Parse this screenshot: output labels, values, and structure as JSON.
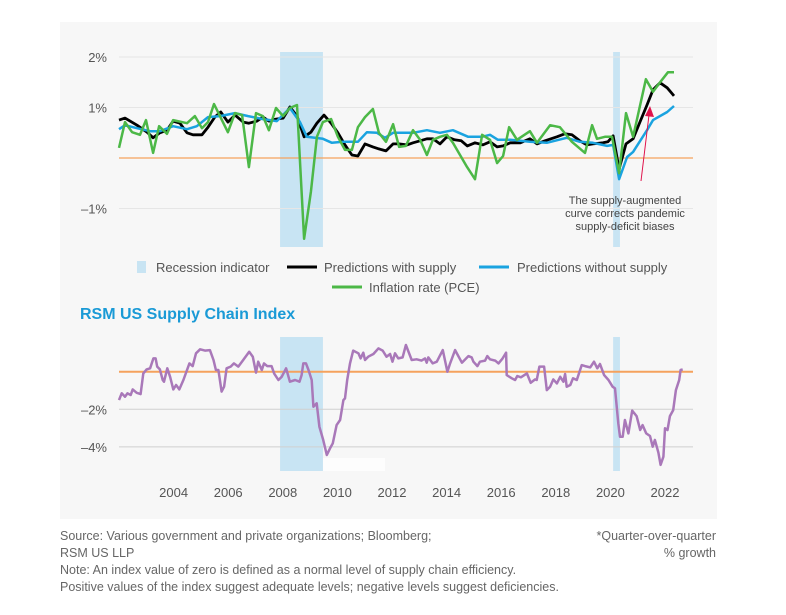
{
  "colors": {
    "recession": "#c8e4f3",
    "with_supply": "#000000",
    "without_supply": "#1aa3e0",
    "inflation": "#4cb847",
    "zero_line": "#f5a25d",
    "index": "#a978b9",
    "annotation_arrow": "#e0144c",
    "title": "#1a9ad6"
  },
  "chart_data": [
    {
      "type": "line",
      "ylim": [
        -1.76,
        2.1
      ],
      "xlim": [
        2002,
        2023
      ],
      "grid": true,
      "ytick_labels": [
        {
          "value": 2,
          "label": "2%"
        },
        {
          "value": 1,
          "label": "1%"
        },
        {
          "value": -1,
          "label": "–1%"
        }
      ],
      "reference_line": 0,
      "recessions": [
        [
          2007.9,
          2009.47
        ],
        [
          2020.1,
          2020.35
        ]
      ],
      "legend_placement": "bottom",
      "legend": {
        "recession": "Recession indicator",
        "with_supply": "Predictions with supply",
        "without_supply": "Predictions without supply",
        "inflation": "Inflation rate (PCE)"
      },
      "annotation": {
        "lines": [
          "The supply-augmented",
          "curve corrects pandemic",
          "supply-deficit biases"
        ],
        "points_to": [
          2021.3,
          0.99
        ]
      },
      "series": [
        {
          "name": "Predictions with supply",
          "key": "with_supply",
          "x": [
            2002.0,
            2002.22,
            2002.66,
            2003.03,
            2003.25,
            2003.5,
            2003.76,
            2003.98,
            2004.23,
            2004.49,
            2004.71,
            2005.04,
            2005.26,
            2005.51,
            2005.73,
            2005.99,
            2006.25,
            2006.55,
            2006.76,
            2007.05,
            2007.27,
            2007.49,
            2007.75,
            2008.01,
            2008.26,
            2008.52,
            2008.78,
            2009.03,
            2009.25,
            2009.51,
            2009.77,
            2010.02,
            2010.28,
            2010.53,
            2010.75,
            2011.01,
            2011.3,
            2011.52,
            2011.78,
            2012.04,
            2012.26,
            2012.55,
            2012.77,
            2013.03,
            2013.28,
            2013.5,
            2013.76,
            2014.01,
            2014.29,
            2014.54,
            2014.76,
            2015.04,
            2015.33,
            2015.59,
            2015.85,
            2016.07,
            2016.33,
            2016.7,
            2017.05,
            2017.31,
            2017.6,
            2018.04,
            2018.33,
            2018.59,
            2018.88,
            2019.14,
            2019.36,
            2019.73,
            2019.91,
            2020.1,
            2020.32,
            2020.57,
            2020.83,
            2021.08,
            2021.34,
            2021.56,
            2021.82,
            2022.08,
            2022.33
          ],
          "y": [
            0.75,
            0.79,
            0.65,
            0.51,
            0.4,
            0.5,
            0.55,
            0.73,
            0.69,
            0.5,
            0.46,
            0.46,
            0.61,
            0.81,
            0.91,
            0.71,
            0.85,
            0.71,
            0.69,
            0.73,
            0.81,
            0.73,
            0.77,
            0.79,
            1.01,
            0.83,
            0.42,
            0.51,
            0.69,
            0.85,
            0.69,
            0.5,
            0.26,
            0.06,
            0.04,
            0.28,
            0.22,
            0.18,
            0.14,
            0.28,
            0.28,
            0.26,
            0.3,
            0.34,
            0.38,
            0.38,
            0.28,
            0.42,
            0.36,
            0.34,
            0.24,
            0.3,
            0.26,
            0.32,
            0.22,
            0.24,
            0.3,
            0.3,
            0.38,
            0.28,
            0.34,
            0.42,
            0.48,
            0.46,
            0.34,
            0.26,
            0.28,
            0.3,
            0.32,
            0.44,
            -0.22,
            0.28,
            0.38,
            0.71,
            1.05,
            1.35,
            1.49,
            1.39,
            1.23
          ]
        },
        {
          "name": "Predictions without supply",
          "key": "without_supply",
          "x": [
            2002.0,
            2002.22,
            2002.66,
            2003.14,
            2003.5,
            2003.98,
            2004.49,
            2004.85,
            2005.26,
            2005.7,
            2006.25,
            2006.73,
            2007.27,
            2007.78,
            2008.26,
            2008.63,
            2008.88,
            2009.47,
            2009.8,
            2010.2,
            2010.75,
            2011.08,
            2011.45,
            2011.74,
            2012.04,
            2012.77,
            2013.28,
            2013.76,
            2014.23,
            2014.79,
            2015.3,
            2015.59,
            2015.88,
            2016.33,
            2017.05,
            2017.67,
            2018.4,
            2018.88,
            2019.36,
            2019.88,
            2020.1,
            2020.32,
            2020.61,
            2020.83,
            2021.34,
            2021.56,
            2022.08,
            2022.33
          ],
          "y": [
            0.57,
            0.65,
            0.59,
            0.53,
            0.53,
            0.63,
            0.57,
            0.63,
            0.81,
            0.83,
            0.89,
            0.83,
            0.77,
            0.73,
            0.99,
            0.71,
            0.42,
            0.38,
            0.3,
            0.32,
            0.32,
            0.51,
            0.5,
            0.4,
            0.5,
            0.5,
            0.55,
            0.5,
            0.55,
            0.42,
            0.42,
            0.46,
            0.36,
            0.36,
            0.32,
            0.3,
            0.4,
            0.32,
            0.3,
            0.24,
            0.26,
            -0.42,
            0.02,
            0.12,
            0.55,
            0.75,
            0.91,
            1.03
          ]
        },
        {
          "name": "Inflation rate (PCE)",
          "key": "inflation",
          "x": [
            2002.0,
            2002.22,
            2002.48,
            2002.77,
            2002.99,
            2003.25,
            2003.47,
            2003.76,
            2003.98,
            2004.49,
            2004.78,
            2005.04,
            2005.26,
            2005.48,
            2005.77,
            2005.99,
            2006.25,
            2006.51,
            2006.76,
            2007.02,
            2007.27,
            2007.49,
            2007.75,
            2008.01,
            2008.26,
            2008.52,
            2008.78,
            2009.03,
            2009.25,
            2009.47,
            2009.77,
            2010.02,
            2010.28,
            2010.53,
            2010.75,
            2011.01,
            2011.3,
            2011.52,
            2011.78,
            2012.04,
            2012.26,
            2012.51,
            2012.77,
            2013.03,
            2013.28,
            2013.5,
            2013.76,
            2014.01,
            2014.23,
            2014.75,
            2015.04,
            2015.3,
            2015.59,
            2015.85,
            2016.07,
            2016.29,
            2016.58,
            2017.05,
            2017.31,
            2017.79,
            2018.15,
            2018.59,
            2019.07,
            2019.33,
            2019.51,
            2019.8,
            2020.06,
            2020.32,
            2020.57,
            2020.83,
            2021.3,
            2021.56,
            2021.82,
            2022.11,
            2022.33
          ],
          "y": [
            0.2,
            0.71,
            0.51,
            0.46,
            0.75,
            0.1,
            0.63,
            0.48,
            0.75,
            0.69,
            0.83,
            0.59,
            0.71,
            1.07,
            0.75,
            0.51,
            0.89,
            0.85,
            -0.18,
            0.89,
            0.83,
            0.55,
            0.99,
            0.83,
            0.99,
            1.05,
            -1.6,
            -0.67,
            0.42,
            0.71,
            0.77,
            0.42,
            0.16,
            0.16,
            0.61,
            0.81,
            0.97,
            0.5,
            0.32,
            0.67,
            0.22,
            0.24,
            0.55,
            0.36,
            0.06,
            0.36,
            0.42,
            0.46,
            0.3,
            -0.18,
            -0.42,
            0.46,
            0.36,
            -0.1,
            0.04,
            0.61,
            0.36,
            0.53,
            0.3,
            0.65,
            0.61,
            0.32,
            0.1,
            0.65,
            0.38,
            0.42,
            0.42,
            -0.3,
            0.89,
            0.42,
            1.56,
            1.31,
            1.5,
            1.7,
            1.7
          ]
        }
      ]
    },
    {
      "type": "line",
      "title": "RSM US Supply Chain Index",
      "ylim": [
        -5.28,
        1.85
      ],
      "xlim": [
        2002,
        2023
      ],
      "grid": true,
      "ytick_labels": [
        {
          "value": -2,
          "label": "–2%"
        },
        {
          "value": -4,
          "label": "–4%"
        }
      ],
      "reference_line": 0,
      "recessions": [
        [
          2007.9,
          2009.47
        ],
        [
          2020.1,
          2020.35
        ]
      ],
      "xtick_labels": [
        "2004",
        "2006",
        "2008",
        "2010",
        "2012",
        "2014",
        "2016",
        "2018",
        "2020",
        "2022"
      ],
      "series": [
        {
          "key": "index",
          "x": [
            2002.0,
            2002.1,
            2002.22,
            2002.31,
            2002.43,
            2002.5,
            2002.65,
            2002.79,
            2002.89,
            2003.01,
            2003.14,
            2003.26,
            2003.34,
            2003.4,
            2003.5,
            2003.6,
            2003.65,
            2003.77,
            2003.87,
            2003.99,
            2004.09,
            2004.21,
            2004.36,
            2004.58,
            2004.7,
            2004.82,
            2004.97,
            2005.15,
            2005.33,
            2005.46,
            2005.55,
            2005.64,
            2005.76,
            2005.85,
            2005.94,
            2006.09,
            2006.21,
            2006.37,
            2006.55,
            2006.77,
            2006.9,
            2007.02,
            2007.1,
            2007.23,
            2007.31,
            2007.43,
            2007.59,
            2007.68,
            2007.84,
            2007.96,
            2008.12,
            2008.26,
            2008.45,
            2008.61,
            2008.69,
            2008.75,
            2008.85,
            2008.94,
            2009.06,
            2009.12,
            2009.24,
            2009.34,
            2009.48,
            2009.61,
            2009.73,
            2009.83,
            2009.97,
            2010.1,
            2010.22,
            2010.28,
            2010.36,
            2010.46,
            2010.58,
            2010.77,
            2010.85,
            2010.95,
            2011.01,
            2011.13,
            2011.32,
            2011.5,
            2011.66,
            2011.8,
            2011.93,
            2012.02,
            2012.11,
            2012.23,
            2012.39,
            2012.51,
            2012.72,
            2012.9,
            2013.08,
            2013.21,
            2013.27,
            2013.33,
            2013.49,
            2013.64,
            2013.86,
            2014.03,
            2014.13,
            2014.31,
            2014.56,
            2014.8,
            2014.92,
            2014.98,
            2015.13,
            2015.22,
            2015.41,
            2015.49,
            2015.59,
            2015.78,
            2015.9,
            2016.05,
            2016.18,
            2016.2,
            2016.39,
            2016.51,
            2016.59,
            2016.72,
            2016.94,
            2017.08,
            2017.24,
            2017.3,
            2017.4,
            2017.57,
            2017.67,
            2017.79,
            2017.91,
            2018.04,
            2018.16,
            2018.28,
            2018.34,
            2018.4,
            2018.53,
            2018.63,
            2018.77,
            2018.95,
            2019.07,
            2019.26,
            2019.4,
            2019.52,
            2019.62,
            2019.77,
            2019.93,
            2020.08,
            2020.17,
            2020.29,
            2020.35,
            2020.45,
            2020.53,
            2020.66,
            2020.8,
            2020.96,
            2021.09,
            2021.18,
            2021.31,
            2021.45,
            2021.55,
            2021.63,
            2021.76,
            2021.84,
            2021.94,
            2022.0,
            2022.09,
            2022.18,
            2022.3,
            2022.4,
            2022.52,
            2022.57,
            2022.65
          ],
          "y": [
            -1.51,
            -1.15,
            -1.33,
            -1.15,
            -1.24,
            -0.94,
            -1.12,
            -1.19,
            -0.09,
            0.12,
            0.18,
            0.71,
            0.71,
            0.27,
            0.12,
            -0.44,
            -0.53,
            0.18,
            -0.27,
            -0.94,
            -0.71,
            -0.94,
            -0.44,
            0.44,
            0.3,
            0.98,
            1.19,
            1.12,
            1.15,
            0.62,
            0.09,
            0.09,
            -1.06,
            -0.8,
            0.18,
            0.27,
            0.44,
            0.27,
            0.62,
            1.06,
            0.8,
            -0.05,
            0.53,
            0.09,
            0.44,
            0.3,
            0.3,
            -0.09,
            -0.44,
            -0.27,
            0.18,
            -0.53,
            -0.44,
            -0.53,
            -0.18,
            0.44,
            0.44,
            0.09,
            -0.44,
            -1.86,
            -1.68,
            -2.93,
            -3.63,
            -4.43,
            -4.08,
            -3.81,
            -2.84,
            -2.57,
            -1.51,
            -1.42,
            -0.44,
            0.44,
            1.12,
            0.98,
            0.71,
            1.01,
            0.62,
            0.8,
            0.94,
            1.24,
            1.12,
            0.8,
            0.94,
            0.53,
            0.98,
            0.71,
            0.76,
            1.42,
            0.62,
            0.66,
            0.59,
            0.71,
            0.48,
            0.76,
            0.44,
            0.53,
            1.15,
            0.0,
            0.44,
            1.15,
            0.48,
            0.83,
            0.76,
            0.53,
            0.3,
            0.53,
            0.59,
            0.83,
            0.66,
            0.59,
            0.44,
            0.71,
            1.01,
            -0.18,
            -0.35,
            -0.44,
            -0.23,
            -0.3,
            -0.09,
            -0.59,
            -0.41,
            -0.44,
            0.27,
            0.27,
            -0.98,
            -0.8,
            -0.41,
            -0.62,
            -0.27,
            -0.53,
            -0.12,
            -0.8,
            -0.71,
            -0.35,
            -0.44,
            0.35,
            0.3,
            0.23,
            0.53,
            0.18,
            0.41,
            -0.18,
            -0.44,
            -0.8,
            -0.89,
            -2.75,
            -3.46,
            -3.46,
            -2.57,
            -3.28,
            -2.07,
            -2.36,
            -3.1,
            -2.84,
            -3.28,
            -3.42,
            -3.99,
            -3.63,
            -4.31,
            -4.96,
            -4.52,
            -3.01,
            -3.1,
            -2.36,
            -2.04,
            -0.98,
            -0.44,
            0.09,
            0.12
          ]
        }
      ]
    }
  ],
  "footnotes": {
    "source_line1": "Source: Various government and private organizations; Bloomberg;",
    "source_line2": "RSM US LLP",
    "note_line1": "Note: An index value of zero is defined as a normal level of supply chain efficiency.",
    "note_line2": "Positive values of the index suggest adequate levels; negative levels suggest deficiencies.",
    "units_line1": "*Quarter-over-quarter",
    "units_line2": "% growth"
  }
}
